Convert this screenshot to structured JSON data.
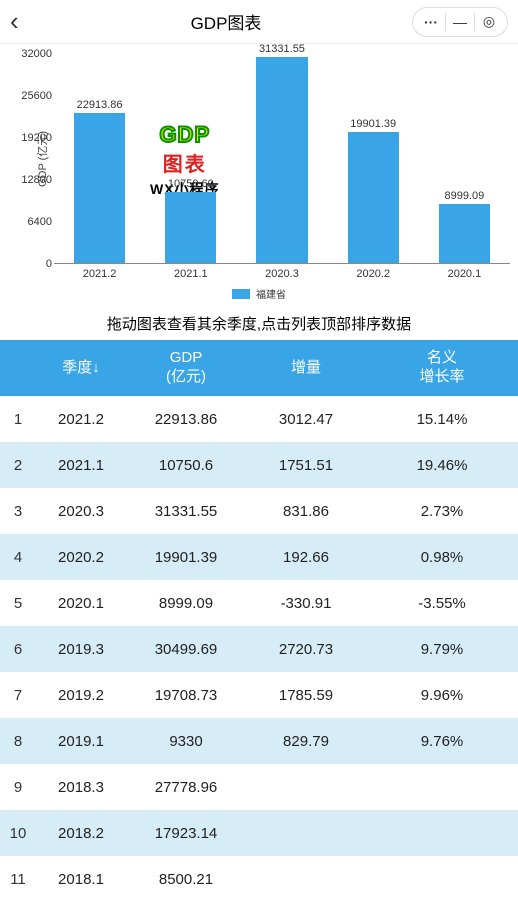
{
  "header": {
    "back_icon": "‹",
    "title": "GDP图表",
    "menu_icon": "···",
    "min_icon": "—",
    "close_icon": "◎"
  },
  "watermark": {
    "line1": "GDP",
    "line2": "图表",
    "sub": "WX小程序"
  },
  "chart": {
    "type": "bar",
    "ylabel": "GDP (亿元)",
    "ymax": 32000,
    "ymin": 0,
    "ytick_step": 6400,
    "yticks": [
      0,
      6400,
      12800,
      19200,
      25600,
      32000
    ],
    "categories": [
      "2021.2",
      "2021.1",
      "2020.3",
      "2020.2",
      "2020.1"
    ],
    "values": [
      22913.86,
      10750.6,
      31331.55,
      19901.39,
      8999.09
    ],
    "value_labels": [
      "22913.86",
      "10750.60",
      "31331.55",
      "19901.39",
      "8999.09"
    ],
    "bar_color": "#3aa5e6",
    "axis_color": "#888888",
    "text_color": "#333333",
    "background_color": "#ffffff",
    "legend": {
      "label": "福建省",
      "color": "#3aa5e6"
    },
    "title_fontsize": 11,
    "label_fontsize": 11
  },
  "hint": "拖动图表查看其余季度,点击列表顶部排序数据",
  "table": {
    "header_bg": "#3aa5e6",
    "row_alt_bg": "#d6ecf7",
    "row_bg": "#ffffff",
    "columns": [
      "季度↓",
      "GDP\n(亿元)",
      "增量",
      "名义\n增长率"
    ],
    "rows": [
      [
        "1",
        "2021.2",
        "22913.86",
        "3012.47",
        "15.14%"
      ],
      [
        "2",
        "2021.1",
        "10750.6",
        "1751.51",
        "19.46%"
      ],
      [
        "3",
        "2020.3",
        "31331.55",
        "831.86",
        "2.73%"
      ],
      [
        "4",
        "2020.2",
        "19901.39",
        "192.66",
        "0.98%"
      ],
      [
        "5",
        "2020.1",
        "8999.09",
        "-330.91",
        "-3.55%"
      ],
      [
        "6",
        "2019.3",
        "30499.69",
        "2720.73",
        "9.79%"
      ],
      [
        "7",
        "2019.2",
        "19708.73",
        "1785.59",
        "9.96%"
      ],
      [
        "8",
        "2019.1",
        "9330",
        "829.79",
        "9.76%"
      ],
      [
        "9",
        "2018.3",
        "27778.96",
        "",
        ""
      ],
      [
        "10",
        "2018.2",
        "17923.14",
        "",
        ""
      ],
      [
        "11",
        "2018.1",
        "8500.21",
        "",
        ""
      ]
    ]
  }
}
